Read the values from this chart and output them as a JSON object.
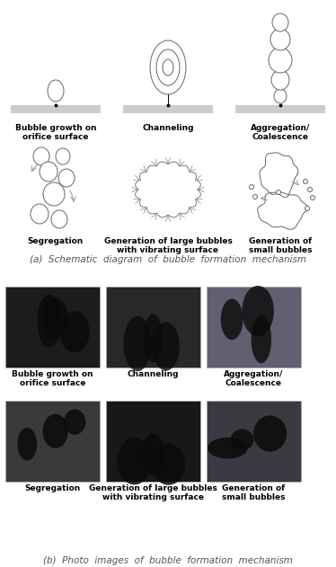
{
  "title_a": "(a)  Schematic  diagram  of  bubble  formation  mechanism",
  "title_b": "(b)  Photo  images  of  bubble  formation  mechanism",
  "labels_row1": [
    "Bubble growth on\norifice surface",
    "Channeling",
    "Aggregation/\nCoalescence"
  ],
  "labels_row2": [
    "Segregation",
    "Generation of large bubbles\nwith vibrating surface",
    "Generation of\nsmall bubbles"
  ],
  "bg_color": "#ffffff",
  "surface_color": "#cccccc",
  "text_color": "#000000",
  "caption_color": "#555555",
  "font_size_label": 6.5,
  "font_size_caption": 7.5,
  "photo_colors": [
    "#222222",
    "#2a2a2a",
    "#555555"
  ],
  "photo_colors2": [
    "#333333",
    "#1a1a1a",
    "#444444"
  ]
}
